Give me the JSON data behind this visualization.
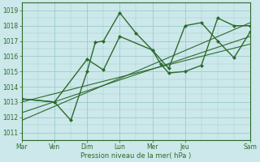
{
  "xlabel": "Pression niveau de la mer( hPa )",
  "bg_color": "#cce8ea",
  "grid_color": "#99cccc",
  "line_color": "#2d6a2d",
  "ylim": [
    1010.5,
    1019.5
  ],
  "xlim": [
    0,
    7
  ],
  "yticks": [
    1011,
    1012,
    1013,
    1014,
    1015,
    1016,
    1017,
    1018,
    1019
  ],
  "day_labels": [
    "Mar",
    "Ven",
    "Dim",
    "Lun",
    "Mer",
    "Jeu",
    "Sam"
  ],
  "day_positions": [
    0,
    1,
    2,
    3,
    4,
    5,
    7
  ],
  "series1_x": [
    0,
    1,
    2,
    2.5,
    3,
    4,
    4.5,
    5,
    5.5,
    6,
    6.5,
    7
  ],
  "series1_y": [
    1013.2,
    1013.0,
    1015.8,
    1015.1,
    1017.3,
    1016.4,
    1015.2,
    1018.0,
    1018.2,
    1017.0,
    1015.9,
    1017.6
  ],
  "series2_x": [
    0,
    1,
    1.5,
    2,
    2.25,
    2.5,
    3,
    3.5,
    4,
    4.25,
    4.5,
    5,
    5.5,
    6,
    6.5,
    7
  ],
  "series2_y": [
    1013.2,
    1013.0,
    1011.8,
    1015.0,
    1016.9,
    1017.0,
    1018.85,
    1017.5,
    1016.4,
    1015.5,
    1014.9,
    1015.0,
    1015.4,
    1018.5,
    1018.0,
    1018.0
  ],
  "trend1_x": [
    0,
    7
  ],
  "trend1_y": [
    1013.0,
    1016.8
  ],
  "trend2_x": [
    0,
    7
  ],
  "trend2_y": [
    1012.3,
    1017.3
  ],
  "trend3_x": [
    0,
    7
  ],
  "trend3_y": [
    1011.8,
    1018.2
  ]
}
